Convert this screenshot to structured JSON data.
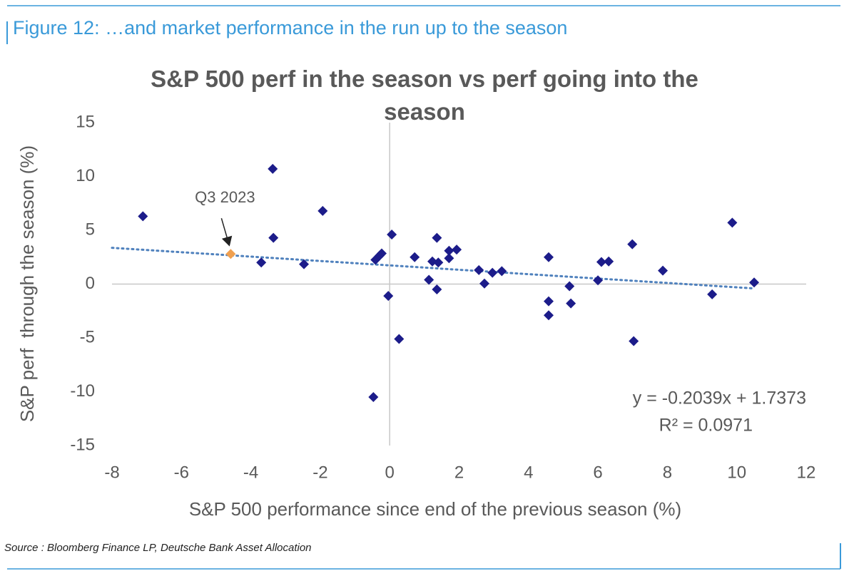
{
  "figure_label": "Figure 12: …and market performance in the run up to the season",
  "source": "Source : Bloomberg Finance LP, Deutsche Bank Asset Allocation",
  "chart_data": {
    "type": "scatter",
    "title": "S&P 500 perf in the season vs perf going into the season",
    "x_label": "S&P 500 performance since end of the previous season (%)",
    "y_label": "S&P perf  through the season (%)",
    "xlim": [
      -8,
      12
    ],
    "xticks": [
      -8,
      -6,
      -4,
      -2,
      0,
      2,
      4,
      6,
      8,
      10,
      12
    ],
    "ylim": [
      -15,
      15
    ],
    "yticks": [
      -15,
      -10,
      -5,
      0,
      5,
      10,
      15
    ],
    "grid": false,
    "series": [
      {
        "color": "#1c1c8a",
        "x": [
          -7.11,
          -3.37,
          -3.35,
          -3.7,
          -2.47,
          -1.93,
          -0.47,
          -0.41,
          -0.29,
          -0.23,
          -0.04,
          0.06,
          0.27,
          0.72,
          1.13,
          1.23,
          1.36,
          1.4,
          1.36,
          1.71,
          1.71,
          1.93,
          2.57,
          2.73,
          2.96,
          3.23,
          4.58,
          4.58,
          4.58,
          5.18,
          5.22,
          6.0,
          6.1,
          6.31,
          6.99,
          7.03,
          7.87,
          9.29,
          9.87,
          10.5
        ],
        "values": [
          6.3,
          10.7,
          4.3,
          2.0,
          1.85,
          6.8,
          -10.5,
          2.25,
          2.65,
          2.85,
          -1.1,
          4.6,
          -5.1,
          2.5,
          0.4,
          2.1,
          4.3,
          2.0,
          -0.5,
          2.4,
          3.1,
          3.2,
          1.3,
          0.05,
          1.05,
          1.2,
          2.5,
          -1.6,
          -2.9,
          -0.2,
          -1.8,
          0.35,
          2.05,
          2.1,
          3.7,
          -5.3,
          1.25,
          -0.95,
          5.7,
          0.15
        ]
      }
    ],
    "highlight": {
      "label": "Q3 2023",
      "x": -4.58,
      "y": 2.8,
      "color": "#f0a050"
    },
    "trendline": {
      "slope": -0.2039,
      "intercept": 1.7373,
      "color": "#4f81bd",
      "equation": "y = -0.2039x + 1.7373",
      "r_squared": "R² = 0.0971"
    }
  }
}
